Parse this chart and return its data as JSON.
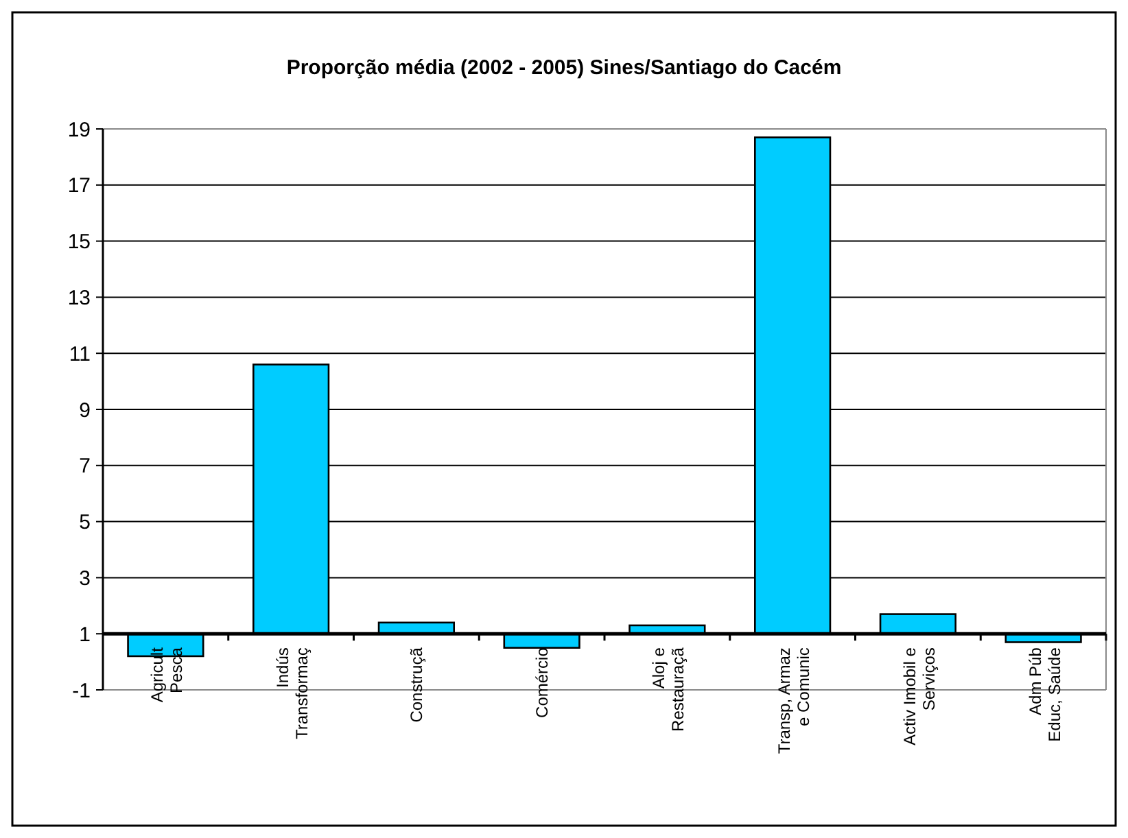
{
  "chart_data": {
    "type": "bar",
    "title": "Proporção média (2002 - 2005) Sines/Santiago do Cacém",
    "categories": [
      "Agricult\nPesca",
      "Indús\nTransformaç",
      "Construçã",
      "Comércio",
      "Aloj e\nRestauraçã",
      "Transp, Armaz\ne Comunic",
      "Activ Imobil e\nServiços",
      "Adm Púb\nEduc, Saúde"
    ],
    "base": [
      1,
      1,
      1,
      1,
      1,
      1,
      1,
      1
    ],
    "values": [
      -0.8,
      9.6,
      0.4,
      -0.5,
      0.3,
      17.7,
      0.7,
      -0.3
    ],
    "color": "#00ccff",
    "ref_lines": [
      {
        "axis": "y",
        "value": 1,
        "color": "#000000"
      }
    ],
    "ylim": [
      -1,
      19
    ],
    "yticks": [
      -1,
      1,
      3,
      5,
      7,
      9,
      11,
      13,
      15,
      17,
      19
    ],
    "grid": "y"
  }
}
